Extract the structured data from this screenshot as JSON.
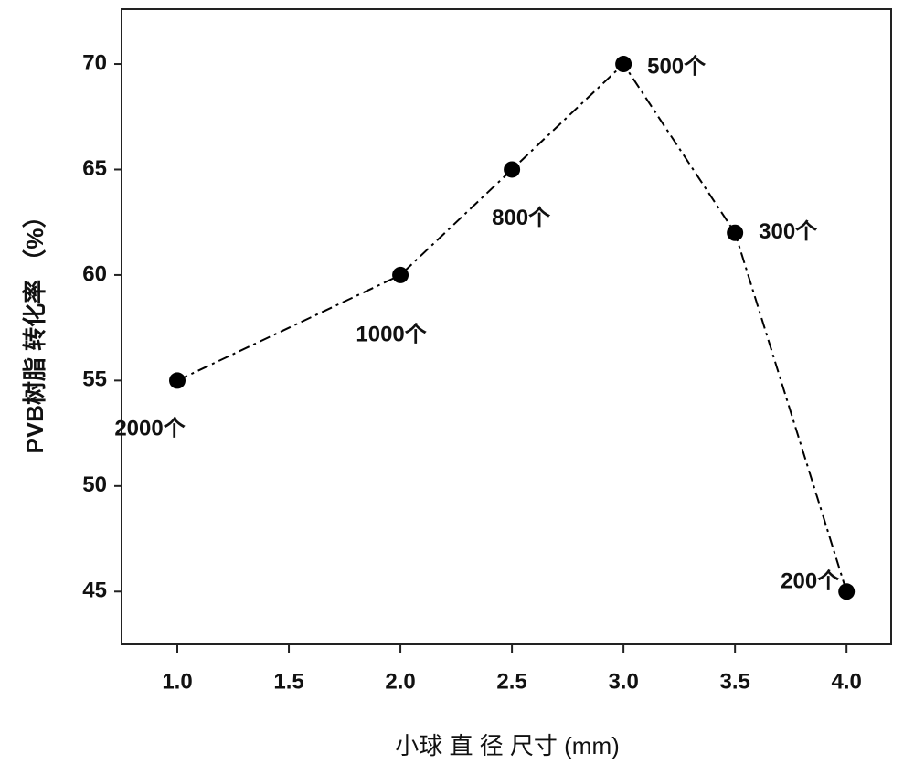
{
  "chart_data": {
    "type": "line",
    "x_label": "小球 直 径 尺寸 (mm)",
    "y_label": "PVB树脂 转化率 （%）",
    "x": [
      1.0,
      2.0,
      2.5,
      3.0,
      3.5,
      4.0
    ],
    "series": [
      {
        "color": "#000000",
        "values": [
          55,
          60,
          65,
          70,
          62,
          45
        ]
      }
    ],
    "point_labels": [
      "2000个",
      "1000个",
      "800个",
      "500个",
      "300个",
      "200个"
    ],
    "xlim": [
      0.75,
      4.2
    ],
    "xticks": [
      {
        "value": 1.0,
        "label": "1.0"
      },
      1.5,
      {
        "value": 2.0,
        "label": "2.0"
      },
      2.5,
      {
        "value": 3.0,
        "label": "3.0"
      },
      3.5,
      {
        "value": 4.0,
        "label": "4.0"
      }
    ],
    "ylim": [
      42.5,
      72.6
    ],
    "yticks": [
      45,
      50,
      55,
      60,
      65,
      70
    ],
    "grid": false
  }
}
